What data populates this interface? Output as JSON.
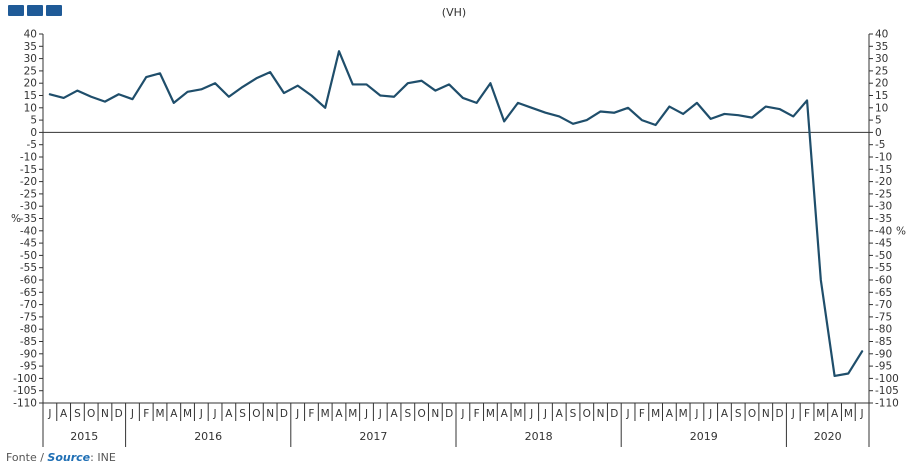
{
  "header": {
    "title": "(VH)"
  },
  "source": {
    "prefix": "Fonte / ",
    "link": "Source",
    "suffix": ": INE"
  },
  "chart_data": {
    "type": "line",
    "title": "(VH)",
    "ylabel": "%",
    "ylabel_right": "%",
    "ylim": [
      -110,
      40
    ],
    "ytick_step": 5,
    "grid": false,
    "line_color": "#1f4e6b",
    "months": [
      "J",
      "A",
      "S",
      "O",
      "N",
      "D",
      "J",
      "F",
      "M",
      "A",
      "M",
      "J",
      "J",
      "A",
      "S",
      "O",
      "N",
      "D",
      "J",
      "F",
      "M",
      "A",
      "M",
      "J",
      "J",
      "A",
      "S",
      "O",
      "N",
      "D",
      "J",
      "F",
      "M",
      "A",
      "M",
      "J",
      "J",
      "A",
      "S",
      "O",
      "N",
      "D",
      "J",
      "F",
      "M",
      "A",
      "M",
      "J",
      "J",
      "A",
      "S",
      "O",
      "N",
      "D",
      "J",
      "F",
      "M",
      "A",
      "M",
      "J"
    ],
    "years": [
      {
        "label": "2015",
        "start": 0,
        "end": 6
      },
      {
        "label": "2016",
        "start": 6,
        "end": 18
      },
      {
        "label": "2017",
        "start": 18,
        "end": 30
      },
      {
        "label": "2018",
        "start": 30,
        "end": 42
      },
      {
        "label": "2019",
        "start": 42,
        "end": 54
      },
      {
        "label": "2020",
        "start": 54,
        "end": 60
      }
    ],
    "series": [
      {
        "values": [
          15.5,
          14,
          17,
          14.5,
          12.5,
          15.5,
          13.5,
          22.5,
          24,
          12,
          16.5,
          17.5,
          20,
          14.5,
          18.5,
          22,
          24.5,
          16,
          19,
          15,
          10,
          33,
          19.5,
          19.5,
          15,
          14.5,
          20,
          21,
          17,
          19.5,
          14,
          12,
          20,
          4.5,
          12,
          10,
          8,
          6.5,
          3.5,
          5,
          8.5,
          8,
          10,
          5,
          3,
          10.5,
          7.5,
          12,
          5.5,
          7.5,
          7,
          6,
          10.5,
          9.5,
          6.5,
          13,
          -60,
          -99,
          -98,
          -89
        ]
      }
    ]
  }
}
